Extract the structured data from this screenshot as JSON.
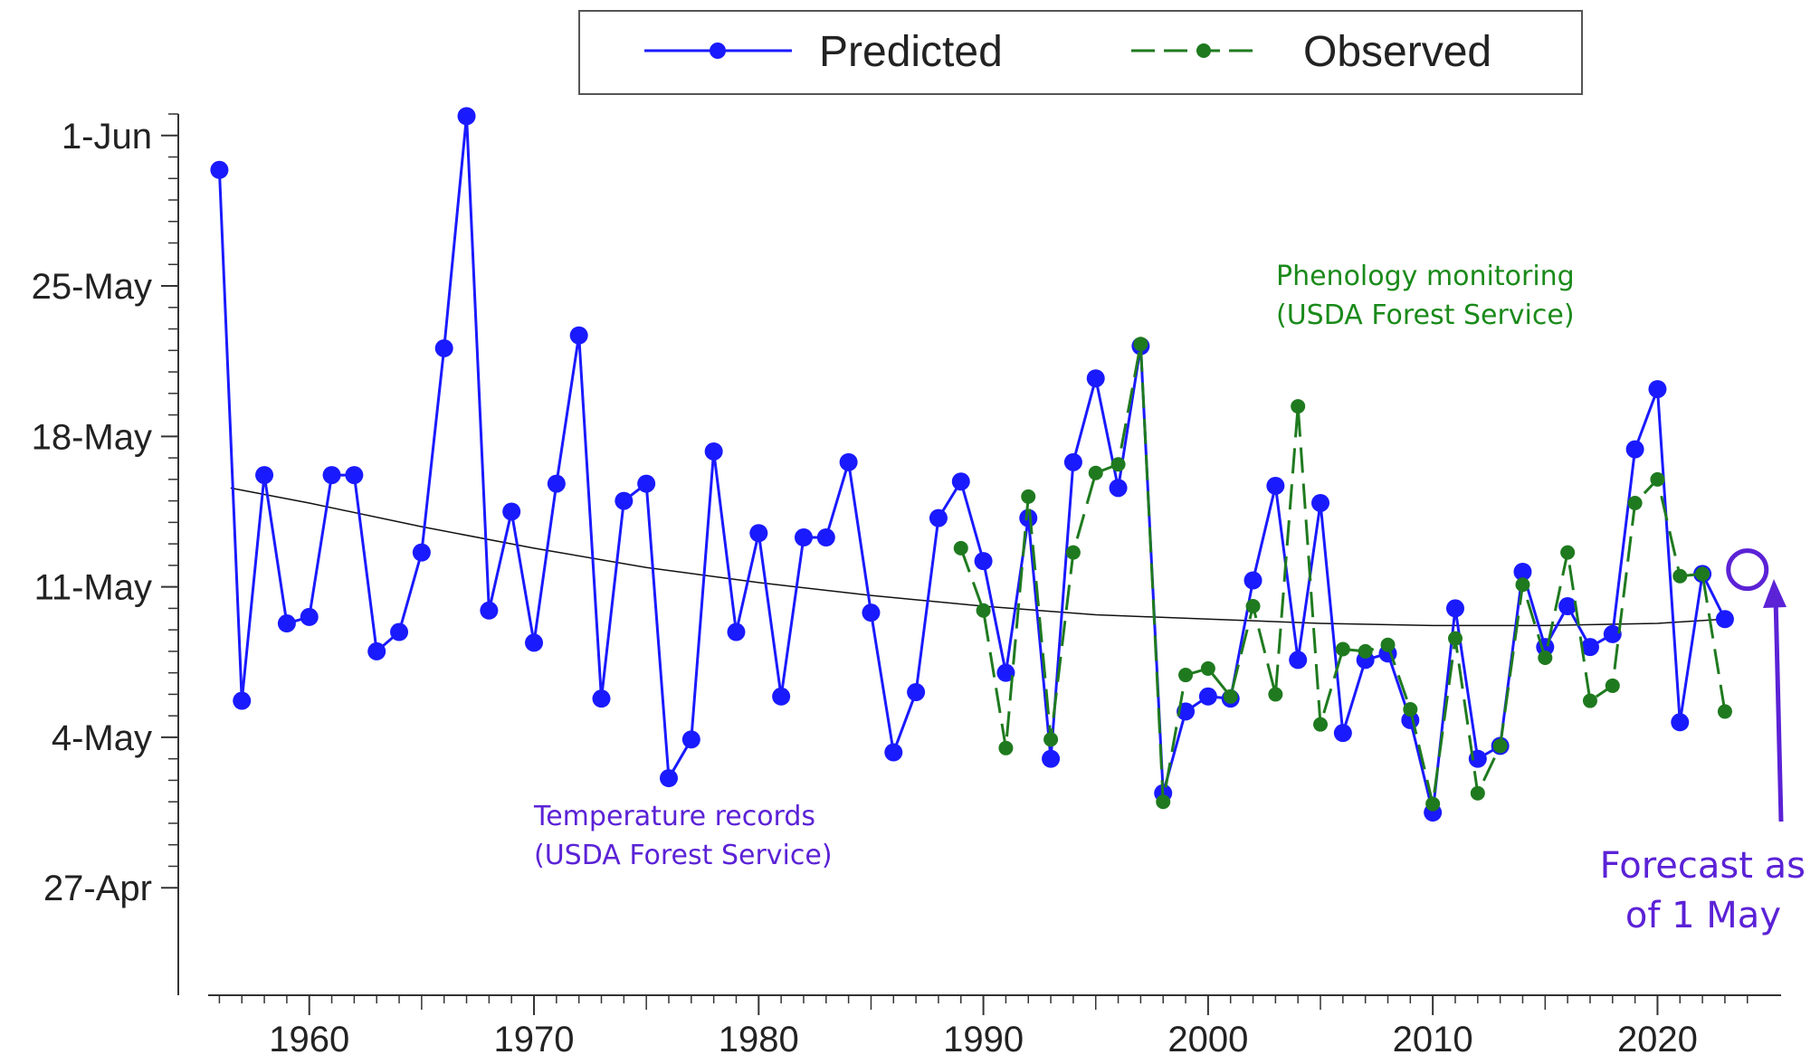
{
  "chart_data": {
    "type": "line",
    "title": "",
    "xlabel": "",
    "ylabel": "",
    "xlim": [
      1955.5,
      2025.5
    ],
    "ylim": [
      -5,
      36
    ],
    "x_ticks": [
      1960,
      1970,
      1980,
      1990,
      2000,
      2010,
      2020
    ],
    "x_tick_labels": [
      "1960",
      "1970",
      "1980",
      "1990",
      "2000",
      "2010",
      "2020"
    ],
    "y_ticks": [
      0,
      7,
      14,
      21,
      28,
      35
    ],
    "y_tick_labels": [
      "27-Apr",
      "4-May",
      "11-May",
      "18-May",
      "25-May",
      "1-Jun"
    ],
    "legend": {
      "position": "top",
      "entries": [
        "Predicted",
        "Observed"
      ]
    },
    "series": [
      {
        "name": "Predicted",
        "color": "#1a1aff",
        "x": [
          1956,
          1957,
          1958,
          1959,
          1960,
          1961,
          1962,
          1963,
          1964,
          1965,
          1966,
          1967,
          1968,
          1969,
          1970,
          1971,
          1972,
          1973,
          1974,
          1975,
          1976,
          1977,
          1978,
          1979,
          1980,
          1981,
          1982,
          1983,
          1984,
          1985,
          1986,
          1987,
          1988,
          1989,
          1990,
          1991,
          1992,
          1993,
          1994,
          1995,
          1996,
          1997,
          1998,
          1999,
          2000,
          2001,
          2002,
          2003,
          2004,
          2005,
          2006,
          2007,
          2008,
          2009,
          2010,
          2011,
          2012,
          2013,
          2014,
          2015,
          2016,
          2017,
          2018,
          2019,
          2020,
          2021,
          2022,
          2023
        ],
        "y": [
          33.4,
          8.7,
          19.2,
          12.3,
          12.6,
          19.2,
          19.2,
          11.0,
          11.9,
          15.6,
          25.1,
          35.9,
          12.9,
          17.5,
          11.4,
          18.8,
          25.7,
          8.8,
          18.0,
          18.8,
          5.1,
          6.9,
          20.3,
          11.9,
          16.5,
          8.9,
          16.3,
          16.3,
          19.8,
          12.8,
          6.3,
          9.1,
          17.2,
          18.9,
          15.2,
          10.0,
          17.2,
          6.0,
          19.8,
          23.7,
          18.6,
          25.2,
          4.4,
          8.2,
          8.9,
          8.8,
          14.3,
          18.7,
          10.6,
          17.9,
          7.2,
          10.6,
          10.9,
          7.8,
          3.5,
          13.0,
          6.0,
          6.6,
          14.7,
          11.2,
          13.1,
          11.2,
          11.8,
          20.4,
          23.2,
          7.7,
          14.6,
          12.5
        ]
      },
      {
        "name": "Observed",
        "color": "#1f7a1f",
        "x": [
          1989,
          1990,
          1991,
          1992,
          1993,
          1994,
          1995,
          1996,
          1997,
          1998,
          1999,
          2000,
          2001,
          2002,
          2003,
          2004,
          2005,
          2006,
          2007,
          2008,
          2009,
          2010,
          2011,
          2012,
          2013,
          2014,
          2015,
          2016,
          2017,
          2018,
          2019,
          2020,
          2021,
          2022,
          2023
        ],
        "y": [
          15.8,
          12.9,
          6.5,
          18.2,
          6.9,
          15.6,
          19.3,
          19.7,
          25.3,
          4.0,
          9.9,
          10.2,
          8.9,
          13.1,
          9.0,
          22.4,
          7.6,
          11.1,
          11.0,
          11.3,
          8.3,
          3.9,
          11.6,
          4.4,
          6.6,
          14.1,
          10.7,
          15.6,
          8.7,
          9.4,
          17.9,
          19.0,
          14.5,
          14.6,
          8.2
        ]
      },
      {
        "name": "Trend",
        "color": "#111111",
        "x": [
          1956.5,
          1960,
          1965,
          1970,
          1975,
          1980,
          1985,
          1990,
          1995,
          2000,
          2005,
          2010,
          2015,
          2020,
          2023
        ],
        "y": [
          18.6,
          17.9,
          16.8,
          15.8,
          14.9,
          14.2,
          13.6,
          13.1,
          12.7,
          12.5,
          12.3,
          12.2,
          12.2,
          12.3,
          12.5
        ]
      }
    ],
    "annotations": {
      "observed_label_line1": "Phenology monitoring",
      "observed_label_line2": "(USDA Forest Service)",
      "predicted_label_line1": "Temperature records",
      "predicted_label_line2": "(USDA Forest Service)",
      "forecast_label_line1": "Forecast as",
      "forecast_label_line2": "of 1 May",
      "forecast_point": {
        "x": 2024,
        "y": 14.8
      }
    },
    "annotation_colors": {
      "observed": "#1a8a1a",
      "predicted": "#5b22d6",
      "forecast": "#5b22d6"
    }
  }
}
